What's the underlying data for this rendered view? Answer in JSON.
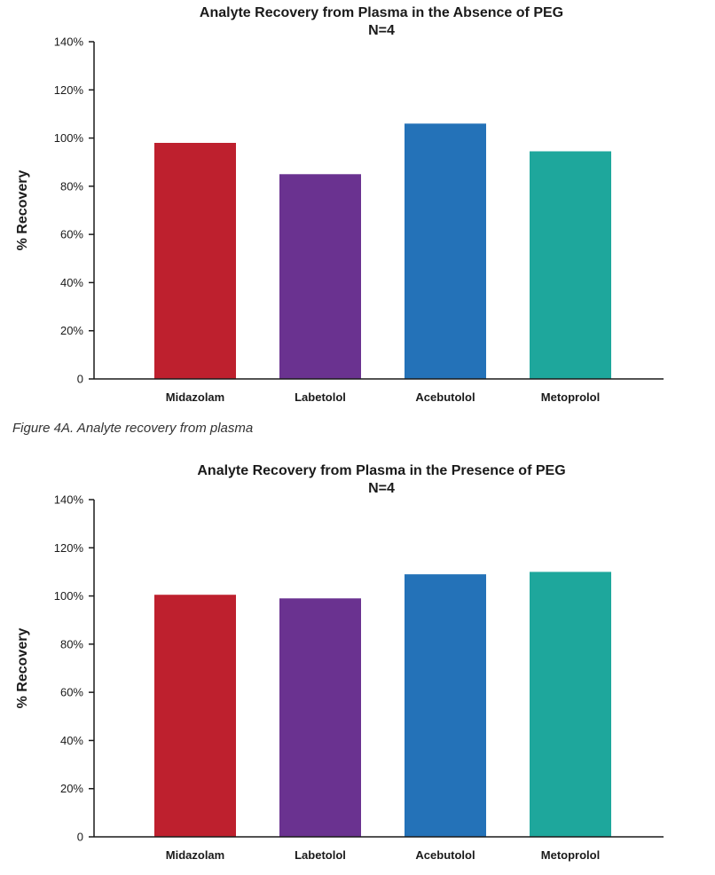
{
  "chart_data": [
    {
      "type": "bar",
      "title": "Analyte Recovery from Plasma in the Absence of PEG",
      "subtitle": "N=4",
      "ylabel": "% Recovery",
      "xlabel": "",
      "ylim": [
        0,
        140
      ],
      "yticks": [
        0,
        20,
        40,
        60,
        80,
        100,
        120,
        140
      ],
      "ytick_labels": [
        "0",
        "20%",
        "40%",
        "60%",
        "80%",
        "100%",
        "120%",
        "140%"
      ],
      "categories": [
        "Midazolam",
        "Labetolol",
        "Acebutolol",
        "Metoprolol"
      ],
      "values": [
        98,
        85,
        106,
        94.5
      ],
      "colors": [
        "#be202e",
        "#6a3290",
        "#2472b8",
        "#1ea79c"
      ]
    },
    {
      "type": "bar",
      "title": "Analyte Recovery from Plasma in the Presence of PEG",
      "subtitle": "N=4",
      "ylabel": "% Recovery",
      "xlabel": "",
      "ylim": [
        0,
        140
      ],
      "yticks": [
        0,
        20,
        40,
        60,
        80,
        100,
        120,
        140
      ],
      "ytick_labels": [
        "0",
        "20%",
        "40%",
        "60%",
        "80%",
        "100%",
        "120%",
        "140%"
      ],
      "categories": [
        "Midazolam",
        "Labetolol",
        "Acebutolol",
        "Metoprolol"
      ],
      "values": [
        100.5,
        99,
        109,
        110
      ],
      "colors": [
        "#be202e",
        "#6a3290",
        "#2472b8",
        "#1ea79c"
      ]
    }
  ],
  "caption": "Figure 4A. Analyte recovery from plasma"
}
